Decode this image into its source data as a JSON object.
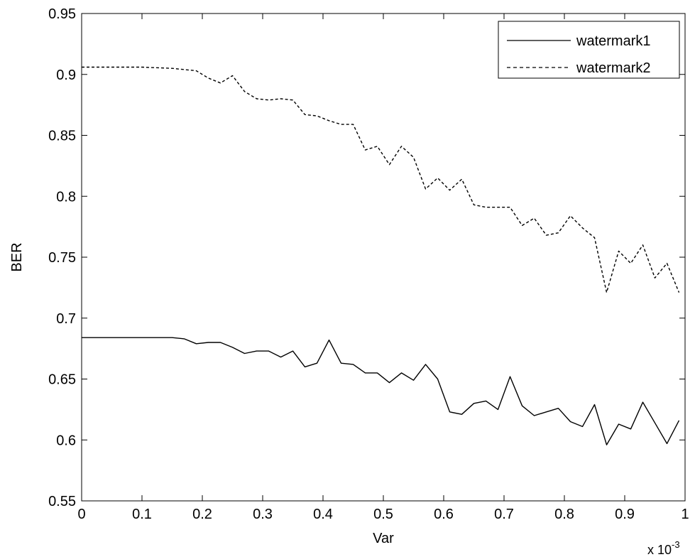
{
  "chart_data": {
    "type": "line",
    "xlabel": "Var",
    "ylabel": "BER",
    "x_multiplier": {
      "base": "x 10",
      "exponent": "-3"
    },
    "xlim": [
      0,
      1
    ],
    "ylim": [
      0.55,
      0.95
    ],
    "xticks": [
      "0",
      "0.1",
      "0.2",
      "0.3",
      "0.4",
      "0.5",
      "0.6",
      "0.7",
      "0.8",
      "0.9",
      "1"
    ],
    "yticks": [
      "0.55",
      "0.6",
      "0.65",
      "0.7",
      "0.75",
      "0.8",
      "0.85",
      "0.9",
      "0.95"
    ],
    "grid": false,
    "legend": "top-right",
    "series": [
      {
        "name": "watermark1",
        "style": "solid",
        "color": "#000000",
        "points": [
          [
            0,
            0.684
          ],
          [
            0.05,
            0.684
          ],
          [
            0.1,
            0.684
          ],
          [
            0.15,
            0.684
          ],
          [
            0.17,
            0.683
          ],
          [
            0.19,
            0.679
          ],
          [
            0.21,
            0.68
          ],
          [
            0.23,
            0.68
          ],
          [
            0.25,
            0.676
          ],
          [
            0.27,
            0.671
          ],
          [
            0.29,
            0.673
          ],
          [
            0.31,
            0.673
          ],
          [
            0.33,
            0.668
          ],
          [
            0.35,
            0.673
          ],
          [
            0.37,
            0.66
          ],
          [
            0.39,
            0.663
          ],
          [
            0.41,
            0.682
          ],
          [
            0.43,
            0.663
          ],
          [
            0.45,
            0.662
          ],
          [
            0.47,
            0.655
          ],
          [
            0.49,
            0.655
          ],
          [
            0.51,
            0.647
          ],
          [
            0.53,
            0.655
          ],
          [
            0.55,
            0.649
          ],
          [
            0.57,
            0.662
          ],
          [
            0.59,
            0.65
          ],
          [
            0.61,
            0.623
          ],
          [
            0.63,
            0.621
          ],
          [
            0.65,
            0.63
          ],
          [
            0.67,
            0.632
          ],
          [
            0.69,
            0.625
          ],
          [
            0.71,
            0.652
          ],
          [
            0.73,
            0.628
          ],
          [
            0.75,
            0.62
          ],
          [
            0.77,
            0.623
          ],
          [
            0.79,
            0.626
          ],
          [
            0.81,
            0.615
          ],
          [
            0.83,
            0.611
          ],
          [
            0.85,
            0.629
          ],
          [
            0.87,
            0.596
          ],
          [
            0.89,
            0.613
          ],
          [
            0.91,
            0.609
          ],
          [
            0.93,
            0.631
          ],
          [
            0.95,
            0.614
          ],
          [
            0.97,
            0.597
          ],
          [
            0.99,
            0.616
          ]
        ]
      },
      {
        "name": "watermark2",
        "style": "dashed",
        "color": "#000000",
        "points": [
          [
            0,
            0.906
          ],
          [
            0.05,
            0.906
          ],
          [
            0.1,
            0.906
          ],
          [
            0.15,
            0.905
          ],
          [
            0.17,
            0.904
          ],
          [
            0.19,
            0.903
          ],
          [
            0.21,
            0.897
          ],
          [
            0.23,
            0.893
          ],
          [
            0.25,
            0.899
          ],
          [
            0.27,
            0.886
          ],
          [
            0.29,
            0.88
          ],
          [
            0.31,
            0.879
          ],
          [
            0.33,
            0.88
          ],
          [
            0.35,
            0.879
          ],
          [
            0.37,
            0.867
          ],
          [
            0.39,
            0.866
          ],
          [
            0.41,
            0.862
          ],
          [
            0.43,
            0.859
          ],
          [
            0.45,
            0.859
          ],
          [
            0.47,
            0.838
          ],
          [
            0.49,
            0.841
          ],
          [
            0.51,
            0.826
          ],
          [
            0.53,
            0.841
          ],
          [
            0.55,
            0.832
          ],
          [
            0.57,
            0.806
          ],
          [
            0.59,
            0.815
          ],
          [
            0.61,
            0.805
          ],
          [
            0.63,
            0.814
          ],
          [
            0.65,
            0.793
          ],
          [
            0.67,
            0.791
          ],
          [
            0.69,
            0.791
          ],
          [
            0.71,
            0.791
          ],
          [
            0.73,
            0.776
          ],
          [
            0.75,
            0.782
          ],
          [
            0.77,
            0.768
          ],
          [
            0.79,
            0.77
          ],
          [
            0.81,
            0.784
          ],
          [
            0.83,
            0.774
          ],
          [
            0.85,
            0.766
          ],
          [
            0.87,
            0.721
          ],
          [
            0.89,
            0.755
          ],
          [
            0.91,
            0.745
          ],
          [
            0.93,
            0.76
          ],
          [
            0.95,
            0.733
          ],
          [
            0.97,
            0.745
          ],
          [
            0.99,
            0.721
          ]
        ]
      }
    ]
  }
}
